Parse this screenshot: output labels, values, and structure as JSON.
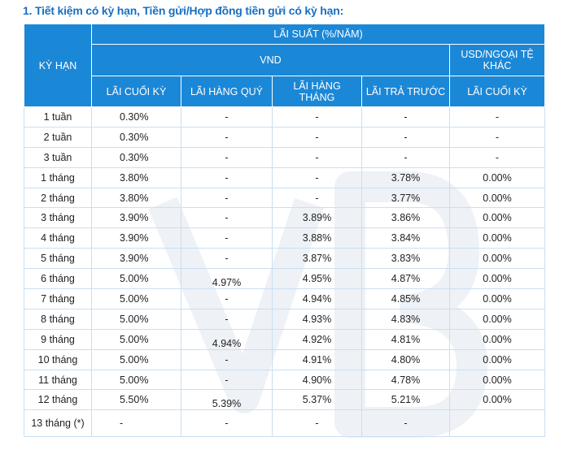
{
  "title": "1. Tiết kiệm có kỳ hạn, Tiền gửi/Hợp đồng tiền gửi có kỳ hạn:",
  "header": {
    "ky_han": "KỲ HẠN",
    "lai_suat": "LÃI SUẤT (%/NĂM)",
    "vnd": "VND",
    "usd": "USD/NGOẠI TỆ KHÁC",
    "cols": [
      "LÃI CUỐI KỲ",
      "LÃI HÀNG QUÝ",
      "LÃI HÀNG THÁNG",
      "LÃI TRẢ TRƯỚC",
      "LÃI CUỐI KỲ"
    ]
  },
  "rows": [
    {
      "term": "1 tuần",
      "cuoi_ky": "0.30%",
      "hang_quy": "-",
      "hang_thang": "-",
      "tra_truoc": "-",
      "usd": "-"
    },
    {
      "term": "2 tuần",
      "cuoi_ky": "0.30%",
      "hang_quy": "-",
      "hang_thang": "-",
      "tra_truoc": "-",
      "usd": "-"
    },
    {
      "term": "3 tuần",
      "cuoi_ky": "0.30%",
      "hang_quy": "-",
      "hang_thang": "-",
      "tra_truoc": "-",
      "usd": "-"
    },
    {
      "term": "1 tháng",
      "cuoi_ky": "3.80%",
      "hang_quy": "-",
      "hang_thang": "-",
      "tra_truoc": "3.78%",
      "usd": "0.00%"
    },
    {
      "term": "2 tháng",
      "cuoi_ky": "3.80%",
      "hang_quy": "-",
      "hang_thang": "-",
      "tra_truoc": "3.77%",
      "usd": "0.00%"
    },
    {
      "term": "3 tháng",
      "cuoi_ky": "3.90%",
      "hang_quy": "-",
      "hang_thang": "3.89%",
      "tra_truoc": "3.86%",
      "usd": "0.00%"
    },
    {
      "term": "4 tháng",
      "cuoi_ky": "3.90%",
      "hang_quy": "-",
      "hang_thang": "3.88%",
      "tra_truoc": "3.84%",
      "usd": "0.00%"
    },
    {
      "term": "5 tháng",
      "cuoi_ky": "3.90%",
      "hang_quy": "-",
      "hang_thang": "3.87%",
      "tra_truoc": "3.83%",
      "usd": "0.00%"
    },
    {
      "term": "6 tháng",
      "cuoi_ky": "5.00%",
      "hang_quy": "4.97%",
      "hang_thang": "4.95%",
      "tra_truoc": "4.87%",
      "usd": "0.00%"
    },
    {
      "term": "7 tháng",
      "cuoi_ky": "5.00%",
      "hang_quy": "-",
      "hang_thang": "4.94%",
      "tra_truoc": "4.85%",
      "usd": "0.00%"
    },
    {
      "term": "8 tháng",
      "cuoi_ky": "5.00%",
      "hang_quy": "-",
      "hang_thang": "4.93%",
      "tra_truoc": "4.83%",
      "usd": "0.00%"
    },
    {
      "term": "9 tháng",
      "cuoi_ky": "5.00%",
      "hang_quy": "4.94%",
      "hang_thang": "4.92%",
      "tra_truoc": "4.81%",
      "usd": "0.00%"
    },
    {
      "term": "10 tháng",
      "cuoi_ky": "5.00%",
      "hang_quy": "-",
      "hang_thang": "4.91%",
      "tra_truoc": "4.80%",
      "usd": "0.00%"
    },
    {
      "term": "11 tháng",
      "cuoi_ky": "5.00%",
      "hang_quy": "-",
      "hang_thang": "4.90%",
      "tra_truoc": "4.78%",
      "usd": "0.00%"
    },
    {
      "term": "12 tháng",
      "cuoi_ky": "5.50%",
      "hang_quy": "5.39%",
      "hang_thang": "5.37%",
      "tra_truoc": "5.21%",
      "usd": "0.00%"
    },
    {
      "term": "13 tháng (*)",
      "cuoi_ky": "-",
      "hang_quy": "-",
      "hang_thang": "-",
      "tra_truoc": "-",
      "usd": ""
    }
  ],
  "colors": {
    "header_bg": "#1b87d7",
    "title": "#1a6fc2",
    "grid": "#c9dff3"
  },
  "watermark_icon": "vib-logo-watermark"
}
